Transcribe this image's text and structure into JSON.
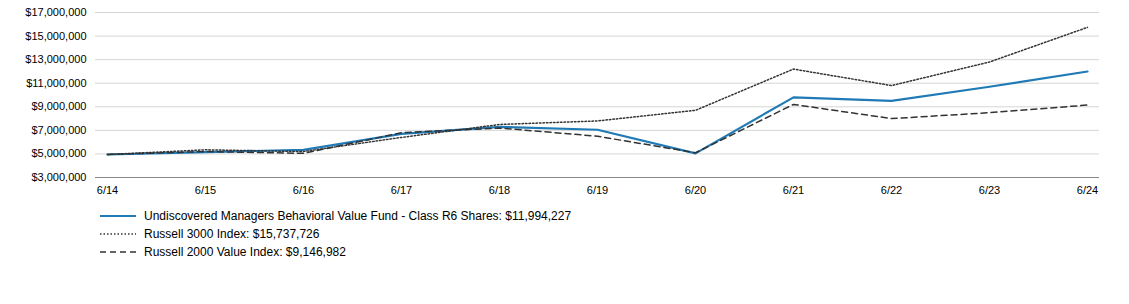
{
  "chart_data": {
    "type": "line",
    "categories": [
      "6/14",
      "6/15",
      "6/16",
      "6/17",
      "6/18",
      "6/19",
      "6/20",
      "6/21",
      "6/22",
      "6/23",
      "6/24"
    ],
    "series": [
      {
        "name": "Undiscovered Managers Behavioral Value Fund - Class R6 Shares: $11,994,227",
        "color": "#1f7ab5",
        "line_style": "solid",
        "values": [
          4950000,
          5150000,
          5350000,
          6700000,
          7300000,
          7050000,
          5050000,
          9800000,
          9500000,
          10700000,
          11994227
        ]
      },
      {
        "name": "Russell 3000 Index: $15,737,726",
        "color": "#333333",
        "line_style": "dotted",
        "values": [
          4950000,
          5350000,
          5200000,
          6400000,
          7500000,
          7800000,
          8700000,
          12200000,
          10800000,
          12800000,
          15737726
        ]
      },
      {
        "name": "Russell 2000 Value Index: $9,146,982",
        "color": "#333333",
        "line_style": "dashed",
        "values": [
          4950000,
          5200000,
          5050000,
          6800000,
          7200000,
          6500000,
          5100000,
          9200000,
          8000000,
          8500000,
          9146982
        ]
      }
    ],
    "ylim": [
      3000000,
      17000000
    ],
    "yticks": [
      {
        "value": 3000000,
        "label": "$3,000,000"
      },
      {
        "value": 5000000,
        "label": "$5,000,000"
      },
      {
        "value": 7000000,
        "label": "$7,000,000"
      },
      {
        "value": 9000000,
        "label": "$9,000,000"
      },
      {
        "value": 11000000,
        "label": "$11,000,000"
      },
      {
        "value": 13000000,
        "label": "$13,000,000"
      },
      {
        "value": 15000000,
        "label": "$15,000,000"
      },
      {
        "value": 17000000,
        "label": "$17,000,000"
      }
    ],
    "grid": true,
    "legend": "bottom"
  }
}
